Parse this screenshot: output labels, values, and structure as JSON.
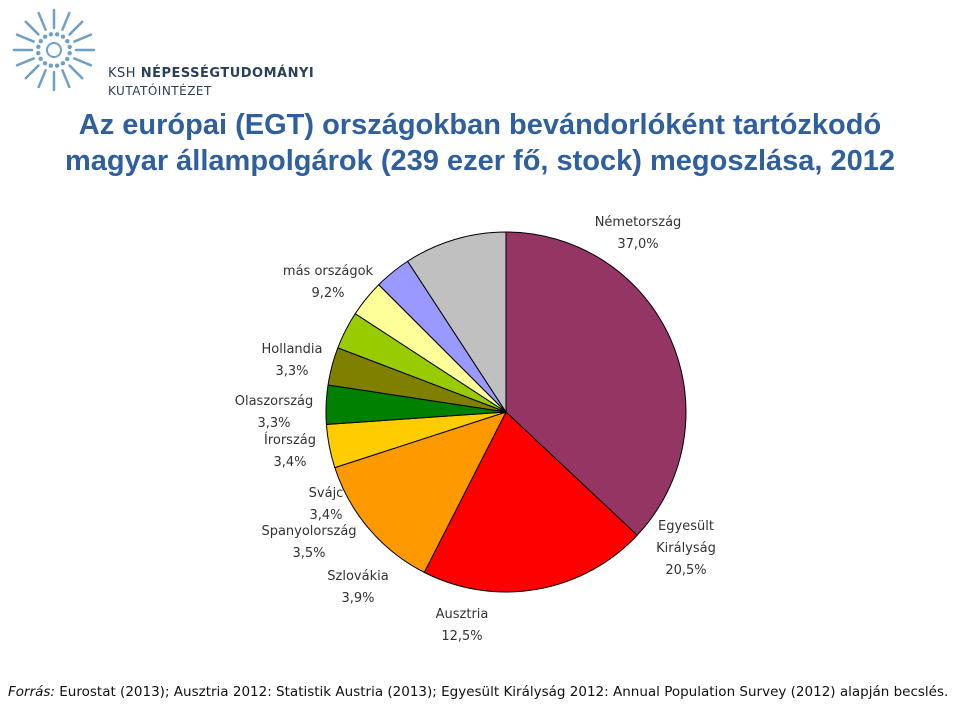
{
  "logo": {
    "line1_prefix": "KSH ",
    "line1_bold": "NÉPESSÉGTUDOMÁNYI",
    "line2": "KUTATÓINTÉZET",
    "color": "#2a3f5c",
    "accent": "#6fa0c8"
  },
  "title": {
    "line1": "Az európai (EGT) országokban bevándorlóként tartózkodó",
    "line2": "magyar állampolgárok (239 ezer fő, stock) megoszlása, 2012"
  },
  "chart_data": {
    "type": "pie",
    "slices": [
      {
        "label": "Németország",
        "value_text": "37,0%",
        "value": 37.0,
        "color": "#953564"
      },
      {
        "label": "Egyesült Királyság",
        "label_lines": [
          "Egyesült",
          "Királyság"
        ],
        "value_text": "20,5%",
        "value": 20.5,
        "color": "#ff0000"
      },
      {
        "label": "Ausztria",
        "value_text": "12,5%",
        "value": 12.5,
        "color": "#ff9900"
      },
      {
        "label": "Szlovákia",
        "value_text": "3,9%",
        "value": 3.9,
        "color": "#ffcc00"
      },
      {
        "label": "Spanyolország",
        "value_text": "3,5%",
        "value": 3.5,
        "color": "#008000"
      },
      {
        "label": "Svájc",
        "value_text": "3,4%",
        "value": 3.4,
        "color": "#7f7f00"
      },
      {
        "label": "Írország",
        "value_text": "3,4%",
        "value": 3.4,
        "color": "#99cc00"
      },
      {
        "label": "Olaszország",
        "value_text": "3,3%",
        "value": 3.3,
        "color": "#ffff99"
      },
      {
        "label": "Hollandia",
        "value_text": "3,3%",
        "value": 3.3,
        "color": "#9999ff"
      },
      {
        "label": "más országok",
        "value_text": "9,2%",
        "value": 9.2,
        "color": "#c0c0c0"
      }
    ]
  },
  "source": {
    "prefix": "Forrás:",
    "text": " Eurostat (2013); Ausztria 2012: Statistik Austria (2013); Egyesült Királyság 2012: Annual Population Survey (2012) alapján becslés."
  }
}
